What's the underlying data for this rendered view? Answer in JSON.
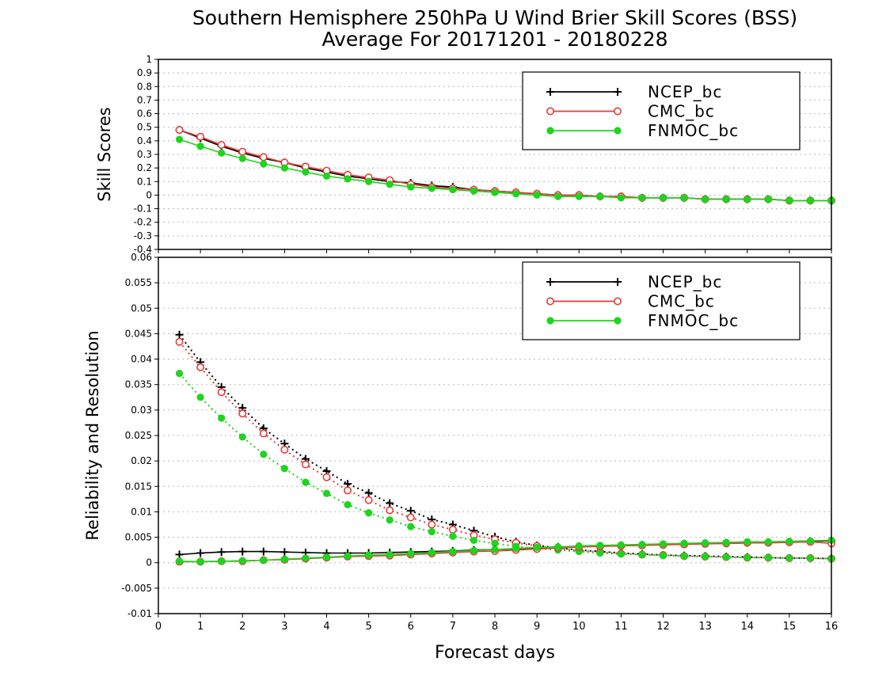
{
  "title_line1": "Southern Hemisphere 250hPa U Wind Brier Skill Scores (BSS)",
  "title_line2": "Average For 20171201 - 20180228",
  "xlabel": "Forecast days",
  "colors": {
    "NCEP_bc": "#000000",
    "CMC_bc": "#e83a3a",
    "FNMOC_bc": "#1ed41e"
  },
  "chart_data": [
    {
      "type": "line",
      "ylabel": "Skill Scores",
      "xlim": [
        0,
        16
      ],
      "ylim": [
        -0.4,
        1
      ],
      "x_ticks": [
        0,
        1,
        2,
        3,
        4,
        5,
        6,
        7,
        8,
        9,
        10,
        11,
        12,
        13,
        14,
        15,
        16
      ],
      "y_ticks": [
        -0.4,
        -0.3,
        -0.2,
        -0.1,
        0,
        0.1,
        0.2,
        0.3,
        0.4,
        0.5,
        0.6,
        0.7,
        0.8,
        0.9,
        1
      ],
      "y_tick_labels": [
        "-0.4",
        "-0.3",
        "-0.2",
        "-0.1",
        "0",
        "0.1",
        "0.2",
        "0.3",
        "0.4",
        "0.5",
        "0.6",
        "0.7",
        "0.8",
        "0.9",
        "1"
      ],
      "grid": true,
      "legend": "top-right",
      "x": [
        0.5,
        1,
        1.5,
        2,
        2.5,
        3,
        3.5,
        4,
        4.5,
        5,
        5.5,
        6,
        6.5,
        7,
        7.5,
        8,
        8.5,
        9,
        9.5,
        10,
        10.5,
        11,
        11.5,
        12,
        12.5,
        13,
        13.5,
        14,
        14.5,
        15,
        15.5,
        16
      ],
      "series": [
        {
          "name": "NCEP_bc",
          "marker": "plus",
          "style": "solid",
          "values": [
            0.48,
            0.42,
            0.36,
            0.31,
            0.27,
            0.24,
            0.2,
            0.17,
            0.14,
            0.12,
            0.1,
            0.09,
            0.07,
            0.06,
            0.04,
            0.03,
            0.02,
            0.01,
            0.0,
            0.0,
            -0.01,
            -0.01,
            -0.02,
            -0.02,
            -0.02,
            -0.03,
            -0.03,
            -0.03,
            -0.03,
            -0.04,
            -0.04,
            -0.04
          ]
        },
        {
          "name": "CMC_bc",
          "marker": "open-circle",
          "style": "solid",
          "values": [
            0.48,
            0.43,
            0.37,
            0.32,
            0.28,
            0.24,
            0.21,
            0.18,
            0.15,
            0.13,
            0.11,
            0.08,
            0.06,
            0.05,
            0.04,
            0.03,
            0.02,
            0.01,
            0.0,
            0.0,
            -0.01,
            -0.01,
            -0.02,
            -0.02,
            -0.02,
            -0.03,
            -0.03,
            -0.03,
            -0.03,
            -0.04,
            -0.04,
            -0.04
          ]
        },
        {
          "name": "FNMOC_bc",
          "marker": "filled-circle",
          "style": "solid",
          "values": [
            0.41,
            0.36,
            0.31,
            0.27,
            0.23,
            0.2,
            0.17,
            0.14,
            0.12,
            0.1,
            0.08,
            0.06,
            0.05,
            0.04,
            0.03,
            0.02,
            0.01,
            0.0,
            -0.01,
            -0.01,
            -0.01,
            -0.02,
            -0.02,
            -0.02,
            -0.02,
            -0.03,
            -0.03,
            -0.03,
            -0.03,
            -0.04,
            -0.04,
            -0.04
          ]
        }
      ]
    },
    {
      "type": "line",
      "ylabel": "Reliability and Resolution",
      "xlim": [
        0,
        16
      ],
      "ylim": [
        -0.01,
        0.06
      ],
      "x_ticks": [
        0,
        1,
        2,
        3,
        4,
        5,
        6,
        7,
        8,
        9,
        10,
        11,
        12,
        13,
        14,
        15,
        16
      ],
      "y_ticks": [
        -0.01,
        -0.005,
        0,
        0.005,
        0.01,
        0.015,
        0.02,
        0.025,
        0.03,
        0.035,
        0.04,
        0.045,
        0.05,
        0.055,
        0.06
      ],
      "y_tick_labels": [
        "-0.01",
        "-0.005",
        "0",
        "0.005",
        "0.01",
        "0.015",
        "0.02",
        "0.025",
        "0.03",
        "0.035",
        "0.04",
        "0.045",
        "0.05",
        "0.055",
        "0.06"
      ],
      "grid": true,
      "legend": "top-right",
      "x": [
        0.5,
        1,
        1.5,
        2,
        2.5,
        3,
        3.5,
        4,
        4.5,
        5,
        5.5,
        6,
        6.5,
        7,
        7.5,
        8,
        8.5,
        9,
        9.5,
        10,
        10.5,
        11,
        11.5,
        12,
        12.5,
        13,
        13.5,
        14,
        14.5,
        15,
        15.5,
        16
      ],
      "series": [
        {
          "name": "NCEP_bc",
          "component": "resolution",
          "marker": "plus",
          "style": "dotted",
          "values": [
            0.0448,
            0.0394,
            0.0345,
            0.0304,
            0.0264,
            0.0234,
            0.0204,
            0.018,
            0.0155,
            0.0137,
            0.0117,
            0.0102,
            0.0085,
            0.0075,
            0.0063,
            0.0051,
            0.0041,
            0.0034,
            0.0029,
            0.0025,
            0.0022,
            0.0019,
            0.0017,
            0.0015,
            0.0014,
            0.0013,
            0.0012,
            0.0011,
            0.001,
            0.0009,
            0.0009,
            0.0008
          ]
        },
        {
          "name": "CMC_bc",
          "component": "resolution",
          "marker": "open-circle",
          "style": "dotted",
          "values": [
            0.0434,
            0.0384,
            0.0335,
            0.0293,
            0.0254,
            0.0222,
            0.0193,
            0.0168,
            0.0142,
            0.0123,
            0.0103,
            0.0089,
            0.0075,
            0.0065,
            0.0054,
            0.0046,
            0.0039,
            0.0033,
            0.0028,
            0.0024,
            0.0021,
            0.0018,
            0.0016,
            0.0015,
            0.0013,
            0.0012,
            0.0011,
            0.001,
            0.001,
            0.0009,
            0.0009,
            0.0008
          ]
        },
        {
          "name": "FNMOC_bc",
          "component": "resolution",
          "marker": "filled-circle",
          "style": "dotted",
          "values": [
            0.0372,
            0.0325,
            0.0284,
            0.0247,
            0.0213,
            0.0185,
            0.0158,
            0.0136,
            0.0114,
            0.0098,
            0.0084,
            0.0071,
            0.0061,
            0.0052,
            0.0044,
            0.0038,
            0.0032,
            0.0028,
            0.0025,
            0.0022,
            0.0019,
            0.0017,
            0.0016,
            0.0014,
            0.0013,
            0.0012,
            0.0011,
            0.001,
            0.001,
            0.0009,
            0.0009,
            0.0008
          ]
        },
        {
          "name": "NCEP_bc",
          "component": "reliability",
          "marker": "plus",
          "style": "solid",
          "values": [
            0.0016,
            0.0019,
            0.0021,
            0.0022,
            0.0022,
            0.0021,
            0.002,
            0.0019,
            0.0019,
            0.0019,
            0.002,
            0.0021,
            0.0022,
            0.0023,
            0.0025,
            0.0026,
            0.0027,
            0.0029,
            0.0031,
            0.0032,
            0.0033,
            0.0034,
            0.0035,
            0.0036,
            0.0037,
            0.0038,
            0.0038,
            0.0039,
            0.004,
            0.0041,
            0.0042,
            0.0043
          ]
        },
        {
          "name": "CMC_bc",
          "component": "reliability",
          "marker": "open-circle",
          "style": "solid",
          "values": [
            0.0002,
            0.0002,
            0.0003,
            0.0003,
            0.0005,
            0.0006,
            0.0008,
            0.001,
            0.0012,
            0.0013,
            0.0014,
            0.0016,
            0.0018,
            0.002,
            0.0022,
            0.0023,
            0.0025,
            0.0027,
            0.0029,
            0.0031,
            0.0032,
            0.0033,
            0.0034,
            0.0035,
            0.0036,
            0.0037,
            0.0038,
            0.0039,
            0.0039,
            0.004,
            0.0041,
            0.0038
          ]
        },
        {
          "name": "FNMOC_bc",
          "component": "reliability",
          "marker": "filled-circle",
          "style": "solid",
          "values": [
            0.0003,
            0.0002,
            0.0003,
            0.0004,
            0.0005,
            0.0007,
            0.0009,
            0.0011,
            0.0013,
            0.0015,
            0.0016,
            0.0018,
            0.002,
            0.0022,
            0.0024,
            0.0026,
            0.0028,
            0.003,
            0.0031,
            0.0033,
            0.0034,
            0.0035,
            0.0036,
            0.0037,
            0.0038,
            0.0039,
            0.004,
            0.0041,
            0.0041,
            0.0042,
            0.0043,
            0.0044
          ]
        }
      ]
    }
  ]
}
